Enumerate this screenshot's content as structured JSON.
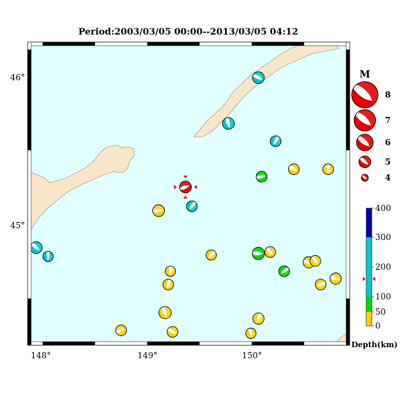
{
  "title": "Period:2003/03/05 00:00--2013/03/05 04:12",
  "map": {
    "lon_range": [
      147.9,
      150.9
    ],
    "lat_range": [
      44.15,
      46.2
    ],
    "lon_ticks": [
      {
        "value": 148,
        "label": "148°"
      },
      {
        "value": 149,
        "label": "149°"
      },
      {
        "value": 150,
        "label": "150°"
      }
    ],
    "lat_ticks": [
      {
        "value": 46,
        "label": "46°"
      },
      {
        "value": 45,
        "label": "45°"
      }
    ],
    "colors": {
      "sea": "#e0ffff",
      "land": "#fae6c8",
      "frame": "#000000"
    }
  },
  "magnitude_legend": {
    "title": "M",
    "items": [
      {
        "label": "8",
        "value": 8
      },
      {
        "label": "7",
        "value": 7
      },
      {
        "label": "6",
        "value": 6
      },
      {
        "label": "5",
        "value": 5
      },
      {
        "label": "4",
        "value": 4
      }
    ]
  },
  "depth_scale": {
    "title": "Depth(km)",
    "ticks": [
      "400",
      "300",
      "200",
      "100",
      "50",
      "0"
    ],
    "bands": [
      {
        "from": 0,
        "to": 50,
        "color": "#ffd200"
      },
      {
        "from": 50,
        "to": 100,
        "color": "#00dc00"
      },
      {
        "from": 100,
        "to": 300,
        "color": "#00c8d2"
      },
      {
        "from": 300,
        "to": 400,
        "color": "#0000aa"
      }
    ],
    "marker_depth": 160,
    "marker_color": "#e60000"
  },
  "events": [
    {
      "lon": 149.37,
      "lat": 45.22,
      "mag": 5.0,
      "depth_color": "#e60000",
      "highlight": true
    },
    {
      "lon": 150.05,
      "lat": 45.96,
      "mag": 5.0,
      "depth_color": "#00c8d2"
    },
    {
      "lon": 149.77,
      "lat": 45.65,
      "mag": 5.0,
      "depth_color": "#00c8d2"
    },
    {
      "lon": 150.21,
      "lat": 45.53,
      "mag": 4.8,
      "depth_color": "#00c8d2"
    },
    {
      "lon": 150.08,
      "lat": 45.29,
      "mag": 4.8,
      "depth_color": "#00dc00"
    },
    {
      "lon": 150.38,
      "lat": 45.34,
      "mag": 4.8,
      "depth_color": "#ffd200"
    },
    {
      "lon": 150.7,
      "lat": 45.34,
      "mag": 4.8,
      "depth_color": "#ffd200"
    },
    {
      "lon": 149.43,
      "lat": 45.09,
      "mag": 4.8,
      "depth_color": "#00c8d2"
    },
    {
      "lon": 149.12,
      "lat": 45.06,
      "mag": 5.0,
      "depth_color": "#ffd200"
    },
    {
      "lon": 147.98,
      "lat": 44.81,
      "mag": 5.0,
      "depth_color": "#00c8d2"
    },
    {
      "lon": 148.09,
      "lat": 44.75,
      "mag": 4.7,
      "depth_color": "#00c8d2"
    },
    {
      "lon": 149.61,
      "lat": 44.76,
      "mag": 4.7,
      "depth_color": "#ffd200"
    },
    {
      "lon": 150.05,
      "lat": 44.77,
      "mag": 5.1,
      "depth_color": "#00dc00"
    },
    {
      "lon": 150.16,
      "lat": 44.78,
      "mag": 4.8,
      "depth_color": "#ffd200"
    },
    {
      "lon": 149.23,
      "lat": 44.65,
      "mag": 4.7,
      "depth_color": "#ffd200"
    },
    {
      "lon": 150.29,
      "lat": 44.65,
      "mag": 4.8,
      "depth_color": "#00dc00"
    },
    {
      "lon": 150.52,
      "lat": 44.71,
      "mag": 4.9,
      "depth_color": "#ffd200"
    },
    {
      "lon": 150.58,
      "lat": 44.72,
      "mag": 4.8,
      "depth_color": "#ffd200"
    },
    {
      "lon": 149.21,
      "lat": 44.56,
      "mag": 4.8,
      "depth_color": "#ffd200"
    },
    {
      "lon": 150.63,
      "lat": 44.56,
      "mag": 4.8,
      "depth_color": "#ffd200"
    },
    {
      "lon": 150.77,
      "lat": 44.6,
      "mag": 4.9,
      "depth_color": "#ffd200"
    },
    {
      "lon": 149.18,
      "lat": 44.37,
      "mag": 5.1,
      "depth_color": "#ffd200"
    },
    {
      "lon": 150.05,
      "lat": 44.33,
      "mag": 4.9,
      "depth_color": "#ffd200"
    },
    {
      "lon": 148.77,
      "lat": 44.25,
      "mag": 4.8,
      "depth_color": "#ffd200"
    },
    {
      "lon": 149.25,
      "lat": 44.24,
      "mag": 4.8,
      "depth_color": "#ffd200"
    },
    {
      "lon": 149.98,
      "lat": 44.23,
      "mag": 4.7,
      "depth_color": "#ffd200"
    }
  ]
}
